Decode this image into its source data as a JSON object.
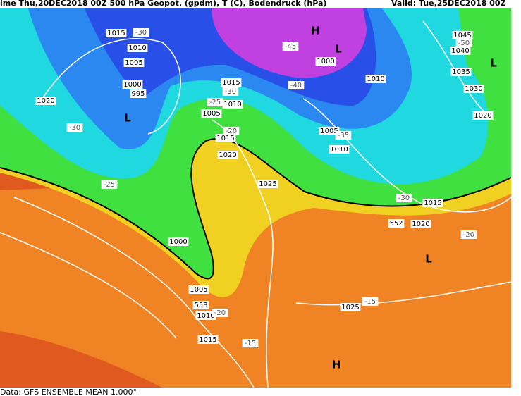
{
  "header": {
    "init": "ime Thu,20DEC2018 00Z  500 hPa Geopot. (gpdm), T (C), Bodendruck (hPa)",
    "valid": "Valid: Tue,25DEC2018 00Z"
  },
  "footer": "Data: GFS ENSEMBLE MEAN 1.000°",
  "isobar_labels": [
    "1015",
    "1010",
    "1005",
    "1000",
    "995",
    "1020",
    "1000",
    "1005",
    "1010",
    "1015",
    "1015",
    "1010",
    "1005",
    "1015",
    "1020",
    "1000",
    "1010",
    "1005",
    "1010",
    "1025",
    "1015",
    "1020",
    "1025",
    "1045",
    "1040",
    "1035",
    "1030",
    "1020"
  ],
  "geopotential_labels": [
    "558",
    "552"
  ],
  "temperature_labels": [
    "-30",
    "-30",
    "-25",
    "-20",
    "-15",
    "-30",
    "-25",
    "-20",
    "-45",
    "-40",
    "-35",
    "-30",
    "-20",
    "-15",
    "-50"
  ],
  "pressure_centers": [
    "L",
    "L",
    "H",
    "L",
    "L",
    "H"
  ]
}
